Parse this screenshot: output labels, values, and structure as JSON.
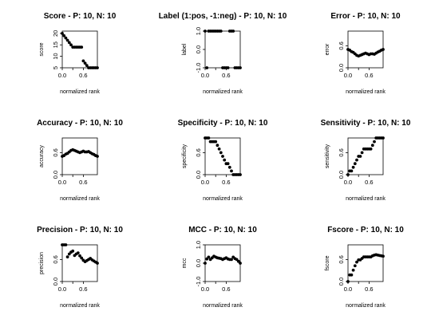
{
  "chart_data": [
    {
      "type": "scatter",
      "title": "Score - P: 10, N: 10",
      "xlabel": "normalized rank",
      "ylabel": "score",
      "xlim": [
        0,
        1
      ],
      "ylim": [
        5,
        21
      ],
      "xticks": [
        "0.0",
        "0.6"
      ],
      "yticks": [
        "5",
        "10",
        "15",
        "20"
      ],
      "grid": false,
      "x": [
        0.0,
        0.05,
        0.1,
        0.15,
        0.2,
        0.25,
        0.3,
        0.35,
        0.4,
        0.45,
        0.5,
        0.55,
        0.6,
        0.65,
        0.7,
        0.75,
        0.8,
        0.85,
        0.9,
        0.95,
        1.0
      ],
      "y": [
        20,
        19,
        18,
        17,
        16,
        15,
        14,
        14,
        14,
        14,
        14,
        14,
        8,
        7,
        6,
        5,
        5,
        5,
        5,
        5,
        5
      ]
    },
    {
      "type": "scatter",
      "title": "Label (1:pos, -1:neg) - P: 10, N: 10",
      "xlabel": "normalized rank",
      "ylabel": "label",
      "xlim": [
        0,
        1
      ],
      "ylim": [
        -1,
        1
      ],
      "xticks": [
        "0.0",
        "0.6"
      ],
      "yticks": [
        "-1.0",
        "0.0",
        "1.0"
      ],
      "grid": false,
      "x": [
        0.0,
        0.05,
        0.1,
        0.15,
        0.2,
        0.25,
        0.3,
        0.35,
        0.4,
        0.45,
        0.5,
        0.55,
        0.6,
        0.65,
        0.7,
        0.75,
        0.8,
        0.85,
        0.9,
        0.95,
        1.0
      ],
      "y": [
        1,
        -1,
        1,
        1,
        1,
        1,
        1,
        1,
        1,
        1,
        -1,
        -1,
        -1,
        -1,
        1,
        1,
        1,
        -1,
        -1,
        -1,
        -1
      ]
    },
    {
      "type": "scatter",
      "title": "Error - P: 10, N: 10",
      "xlabel": "normalized rank",
      "ylabel": "error",
      "xlim": [
        0,
        1
      ],
      "ylim": [
        0,
        1
      ],
      "xticks": [
        "0.0",
        "0.6"
      ],
      "yticks": [
        "0.0",
        "0.6"
      ],
      "grid": false,
      "x": [
        0.0,
        0.05,
        0.1,
        0.15,
        0.2,
        0.25,
        0.3,
        0.35,
        0.4,
        0.45,
        0.5,
        0.55,
        0.6,
        0.65,
        0.7,
        0.75,
        0.8,
        0.85,
        0.9,
        0.95,
        1.0
      ],
      "y": [
        0.5,
        0.48,
        0.44,
        0.42,
        0.38,
        0.34,
        0.32,
        0.34,
        0.36,
        0.38,
        0.4,
        0.38,
        0.36,
        0.38,
        0.38,
        0.37,
        0.4,
        0.43,
        0.45,
        0.48,
        0.5
      ]
    },
    {
      "type": "scatter",
      "title": "Accuracy - P: 10, N: 10",
      "xlabel": "normalized rank",
      "ylabel": "accuracy",
      "xlim": [
        0,
        1
      ],
      "ylim": [
        0,
        1
      ],
      "xticks": [
        "0.0",
        "0.6"
      ],
      "yticks": [
        "0.0",
        "0.6"
      ],
      "grid": false,
      "x": [
        0.0,
        0.05,
        0.1,
        0.15,
        0.2,
        0.25,
        0.3,
        0.35,
        0.4,
        0.45,
        0.5,
        0.55,
        0.6,
        0.65,
        0.7,
        0.75,
        0.8,
        0.85,
        0.9,
        0.95,
        1.0
      ],
      "y": [
        0.5,
        0.52,
        0.56,
        0.58,
        0.62,
        0.66,
        0.68,
        0.66,
        0.64,
        0.62,
        0.6,
        0.62,
        0.64,
        0.62,
        0.62,
        0.63,
        0.6,
        0.57,
        0.55,
        0.52,
        0.5
      ]
    },
    {
      "type": "scatter",
      "title": "Specificity - P: 10, N: 10",
      "xlabel": "normalized rank",
      "ylabel": "specificity",
      "xlim": [
        0,
        1
      ],
      "ylim": [
        0,
        1
      ],
      "xticks": [
        "0.0",
        "0.6"
      ],
      "yticks": [
        "0.0",
        "0.6"
      ],
      "grid": false,
      "x": [
        0.0,
        0.05,
        0.1,
        0.15,
        0.2,
        0.25,
        0.3,
        0.35,
        0.4,
        0.45,
        0.5,
        0.55,
        0.6,
        0.65,
        0.7,
        0.75,
        0.8,
        0.85,
        0.9,
        0.95,
        1.0
      ],
      "y": [
        1.0,
        1.0,
        1.0,
        0.9,
        0.9,
        0.9,
        0.9,
        0.8,
        0.7,
        0.6,
        0.5,
        0.4,
        0.3,
        0.3,
        0.2,
        0.1,
        0.0,
        0.0,
        0.0,
        0.0,
        0.0
      ]
    },
    {
      "type": "scatter",
      "title": "Sensitivity - P: 10, N: 10",
      "xlabel": "normalized rank",
      "ylabel": "sensitivity",
      "xlim": [
        0,
        1
      ],
      "ylim": [
        0,
        1
      ],
      "xticks": [
        "0.0",
        "0.6"
      ],
      "yticks": [
        "0.0",
        "0.6"
      ],
      "grid": false,
      "x": [
        0.0,
        0.05,
        0.1,
        0.15,
        0.2,
        0.25,
        0.3,
        0.35,
        0.4,
        0.45,
        0.5,
        0.55,
        0.6,
        0.65,
        0.7,
        0.75,
        0.8,
        0.85,
        0.9,
        0.95,
        1.0
      ],
      "y": [
        0.0,
        0.1,
        0.1,
        0.2,
        0.3,
        0.4,
        0.5,
        0.5,
        0.6,
        0.7,
        0.7,
        0.7,
        0.7,
        0.7,
        0.8,
        0.9,
        1.0,
        1.0,
        1.0,
        1.0,
        1.0
      ]
    },
    {
      "type": "scatter",
      "title": "Precision - P: 10, N: 10",
      "xlabel": "normalized rank",
      "ylabel": "precision",
      "xlim": [
        0,
        1
      ],
      "ylim": [
        0,
        1
      ],
      "xticks": [
        "0.0",
        "0.6"
      ],
      "yticks": [
        "0.0",
        "0.6"
      ],
      "grid": false,
      "x": [
        0.0,
        0.05,
        0.1,
        0.15,
        0.2,
        0.25,
        0.3,
        0.35,
        0.4,
        0.45,
        0.5,
        0.55,
        0.6,
        0.65,
        0.7,
        0.75,
        0.8,
        0.85,
        0.9,
        0.95,
        1.0
      ],
      "y": [
        1.0,
        1.0,
        1.0,
        0.67,
        0.75,
        0.8,
        0.83,
        0.71,
        0.75,
        0.78,
        0.7,
        0.64,
        0.58,
        0.54,
        0.57,
        0.6,
        0.63,
        0.59,
        0.56,
        0.53,
        0.5
      ]
    },
    {
      "type": "scatter",
      "title": "MCC - P: 10, N: 10",
      "xlabel": "normalized rank",
      "ylabel": "mcc",
      "xlim": [
        0,
        1
      ],
      "ylim": [
        -1,
        1
      ],
      "xticks": [
        "0.0",
        "0.6"
      ],
      "yticks": [
        "-1.0",
        "0.0",
        "1.0"
      ],
      "grid": false,
      "x": [
        0.0,
        0.05,
        0.1,
        0.15,
        0.2,
        0.25,
        0.3,
        0.35,
        0.4,
        0.45,
        0.5,
        0.55,
        0.6,
        0.65,
        0.7,
        0.75,
        0.8,
        0.85,
        0.9,
        0.95,
        1.0
      ],
      "y": [
        0.0,
        0.23,
        0.33,
        0.2,
        0.29,
        0.38,
        0.33,
        0.29,
        0.27,
        0.25,
        0.2,
        0.25,
        0.29,
        0.23,
        0.2,
        0.2,
        0.33,
        0.25,
        0.2,
        0.1,
        0.0
      ]
    },
    {
      "type": "scatter",
      "title": "Fscore - P: 10, N: 10",
      "xlabel": "normalized rank",
      "ylabel": "fscore",
      "xlim": [
        0,
        1
      ],
      "ylim": [
        0,
        1
      ],
      "xticks": [
        "0.0",
        "0.6"
      ],
      "yticks": [
        "0.0",
        "0.6"
      ],
      "grid": false,
      "x": [
        0.0,
        0.05,
        0.1,
        0.15,
        0.2,
        0.25,
        0.3,
        0.35,
        0.4,
        0.45,
        0.5,
        0.55,
        0.6,
        0.65,
        0.7,
        0.75,
        0.8,
        0.85,
        0.9,
        0.95,
        1.0
      ],
      "y": [
        0.0,
        0.18,
        0.18,
        0.31,
        0.43,
        0.53,
        0.59,
        0.59,
        0.63,
        0.67,
        0.67,
        0.67,
        0.67,
        0.67,
        0.7,
        0.72,
        0.73,
        0.72,
        0.71,
        0.7,
        0.69
      ]
    }
  ]
}
